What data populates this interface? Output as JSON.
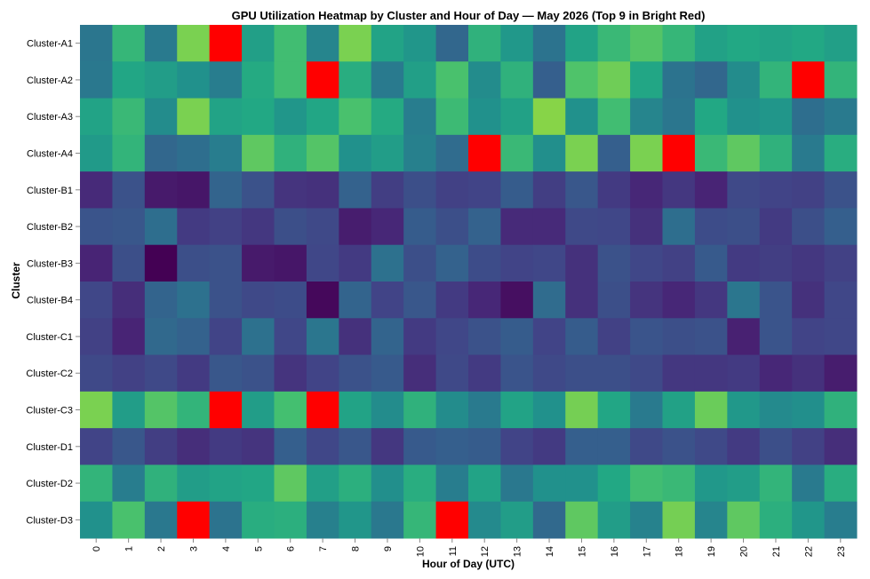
{
  "chart_data": {
    "type": "heatmap",
    "title": "GPU Utilization Heatmap by Cluster and Hour of Day — May 2026 (Top 9 in Bright Red)",
    "xlabel": "Hour of Day (UTC)",
    "ylabel": "Cluster",
    "x_categories": [
      "0",
      "1",
      "2",
      "3",
      "4",
      "5",
      "6",
      "7",
      "8",
      "9",
      "10",
      "11",
      "12",
      "13",
      "14",
      "15",
      "16",
      "17",
      "18",
      "19",
      "20",
      "21",
      "22",
      "23"
    ],
    "y_categories": [
      "Cluster-A1",
      "Cluster-A2",
      "Cluster-A3",
      "Cluster-A4",
      "Cluster-B1",
      "Cluster-B2",
      "Cluster-B3",
      "Cluster-B4",
      "Cluster-C1",
      "Cluster-C2",
      "Cluster-C3",
      "Cluster-D1",
      "Cluster-D2",
      "Cluster-D3"
    ],
    "highlight_color": "#ff0000",
    "colormap": "viridis",
    "grid": false,
    "legend": "none",
    "values": [
      [
        0.39,
        0.66,
        0.41,
        0.8,
        0.99,
        0.56,
        0.69,
        0.45,
        0.8,
        0.58,
        0.52,
        0.33,
        0.64,
        0.53,
        0.38,
        0.58,
        0.67,
        0.73,
        0.66,
        0.57,
        0.6,
        0.58,
        0.6,
        0.56
      ],
      [
        0.4,
        0.59,
        0.55,
        0.5,
        0.42,
        0.61,
        0.69,
        0.98,
        0.62,
        0.41,
        0.56,
        0.71,
        0.48,
        0.64,
        0.3,
        0.72,
        0.78,
        0.59,
        0.38,
        0.33,
        0.48,
        0.65,
        0.98,
        0.65
      ],
      [
        0.58,
        0.67,
        0.48,
        0.8,
        0.58,
        0.6,
        0.52,
        0.59,
        0.71,
        0.61,
        0.42,
        0.68,
        0.5,
        0.57,
        0.82,
        0.5,
        0.69,
        0.45,
        0.39,
        0.6,
        0.5,
        0.52,
        0.36,
        0.41
      ],
      [
        0.54,
        0.65,
        0.33,
        0.36,
        0.42,
        0.75,
        0.64,
        0.73,
        0.5,
        0.55,
        0.43,
        0.35,
        0.98,
        0.67,
        0.49,
        0.8,
        0.3,
        0.8,
        0.98,
        0.67,
        0.75,
        0.64,
        0.41,
        0.62
      ],
      [
        0.12,
        0.25,
        0.07,
        0.06,
        0.32,
        0.25,
        0.15,
        0.14,
        0.31,
        0.18,
        0.24,
        0.19,
        0.2,
        0.29,
        0.18,
        0.27,
        0.17,
        0.11,
        0.16,
        0.1,
        0.22,
        0.2,
        0.19,
        0.25
      ],
      [
        0.26,
        0.27,
        0.36,
        0.17,
        0.19,
        0.16,
        0.24,
        0.22,
        0.08,
        0.11,
        0.29,
        0.24,
        0.31,
        0.12,
        0.12,
        0.22,
        0.21,
        0.14,
        0.36,
        0.23,
        0.24,
        0.17,
        0.24,
        0.3
      ],
      [
        0.1,
        0.24,
        0.0,
        0.24,
        0.25,
        0.07,
        0.06,
        0.21,
        0.17,
        0.37,
        0.24,
        0.31,
        0.23,
        0.2,
        0.21,
        0.14,
        0.25,
        0.21,
        0.19,
        0.28,
        0.17,
        0.18,
        0.16,
        0.19
      ],
      [
        0.21,
        0.13,
        0.32,
        0.37,
        0.25,
        0.22,
        0.23,
        0.02,
        0.32,
        0.2,
        0.27,
        0.17,
        0.11,
        0.04,
        0.35,
        0.14,
        0.24,
        0.15,
        0.11,
        0.16,
        0.39,
        0.26,
        0.14,
        0.21
      ],
      [
        0.19,
        0.1,
        0.34,
        0.31,
        0.2,
        0.37,
        0.21,
        0.39,
        0.14,
        0.32,
        0.17,
        0.21,
        0.25,
        0.29,
        0.2,
        0.29,
        0.19,
        0.26,
        0.24,
        0.25,
        0.09,
        0.26,
        0.2,
        0.21
      ],
      [
        0.22,
        0.19,
        0.22,
        0.17,
        0.27,
        0.25,
        0.15,
        0.2,
        0.25,
        0.28,
        0.13,
        0.22,
        0.17,
        0.26,
        0.22,
        0.24,
        0.24,
        0.22,
        0.16,
        0.16,
        0.17,
        0.11,
        0.14,
        0.08
      ],
      [
        0.8,
        0.55,
        0.73,
        0.65,
        0.98,
        0.55,
        0.7,
        0.98,
        0.58,
        0.48,
        0.64,
        0.48,
        0.41,
        0.58,
        0.5,
        0.79,
        0.59,
        0.41,
        0.57,
        0.77,
        0.53,
        0.47,
        0.49,
        0.64
      ],
      [
        0.2,
        0.27,
        0.18,
        0.13,
        0.17,
        0.15,
        0.3,
        0.21,
        0.27,
        0.16,
        0.28,
        0.3,
        0.29,
        0.2,
        0.17,
        0.3,
        0.3,
        0.22,
        0.25,
        0.22,
        0.17,
        0.24,
        0.19,
        0.13
      ],
      [
        0.65,
        0.42,
        0.64,
        0.55,
        0.58,
        0.59,
        0.75,
        0.56,
        0.63,
        0.49,
        0.62,
        0.42,
        0.58,
        0.4,
        0.5,
        0.5,
        0.6,
        0.69,
        0.67,
        0.53,
        0.55,
        0.65,
        0.41,
        0.62
      ],
      [
        0.5,
        0.71,
        0.4,
        0.98,
        0.38,
        0.62,
        0.63,
        0.43,
        0.52,
        0.4,
        0.66,
        0.98,
        0.47,
        0.55,
        0.34,
        0.75,
        0.55,
        0.44,
        0.79,
        0.45,
        0.75,
        0.63,
        0.52,
        0.42
      ]
    ],
    "highlighted_cells": [
      [
        "Cluster-A1",
        "4"
      ],
      [
        "Cluster-A2",
        "7"
      ],
      [
        "Cluster-A2",
        "22"
      ],
      [
        "Cluster-A4",
        "12"
      ],
      [
        "Cluster-A4",
        "18"
      ],
      [
        "Cluster-C3",
        "4"
      ],
      [
        "Cluster-C3",
        "7"
      ],
      [
        "Cluster-D3",
        "3"
      ],
      [
        "Cluster-D3",
        "11"
      ]
    ]
  }
}
